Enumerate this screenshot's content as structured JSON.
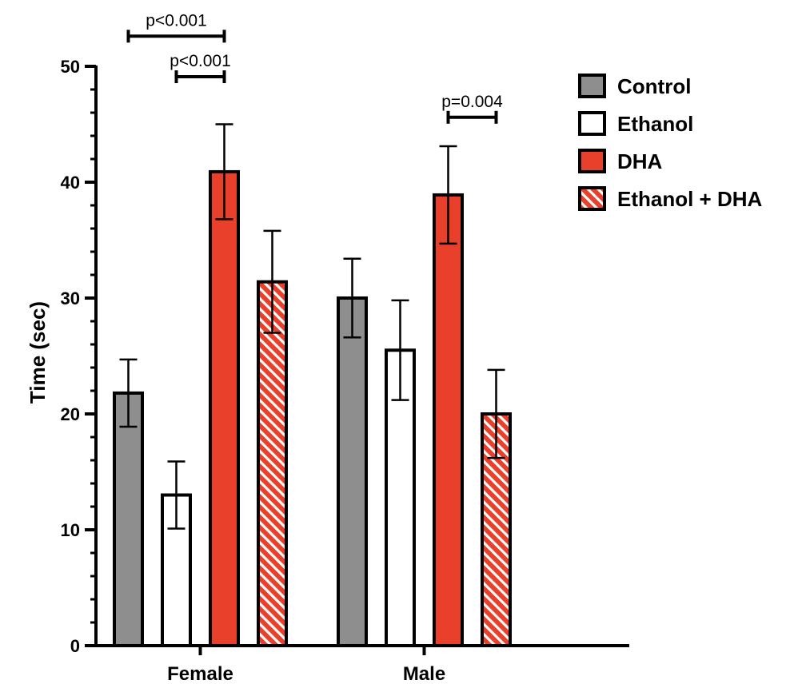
{
  "chart_data": {
    "type": "bar",
    "title": "",
    "xlabel": "",
    "ylabel": "Time (sec)",
    "ylim": [
      0,
      50
    ],
    "yticks": [
      0,
      10,
      20,
      30,
      40,
      50
    ],
    "categories": [
      "Female",
      "Male"
    ],
    "grid": false,
    "legend_position": "top-right",
    "series": [
      {
        "name": "Control",
        "color": "#8e8e8e",
        "pattern": "solid",
        "values": [
          21.8,
          30.0
        ],
        "errors": [
          2.9,
          3.4
        ]
      },
      {
        "name": "Ethanol",
        "color": "#ffffff",
        "pattern": "solid",
        "values": [
          13.0,
          25.5
        ],
        "errors": [
          2.9,
          4.3
        ]
      },
      {
        "name": "DHA",
        "color": "#e8402a",
        "pattern": "solid",
        "values": [
          40.9,
          38.9
        ],
        "errors": [
          4.1,
          4.2
        ]
      },
      {
        "name": "Ethanol + DHA",
        "color": "#e8402a",
        "pattern": "hatched",
        "values": [
          31.4,
          20.0
        ],
        "errors": [
          4.4,
          3.8
        ]
      }
    ],
    "annotations": [
      {
        "text": "p<0.001",
        "category": "Female",
        "from_series": 0,
        "to_series": 2,
        "y": 52.6
      },
      {
        "text": "p<0.001",
        "category": "Female",
        "from_series": 1,
        "to_series": 2,
        "y": 49.1
      },
      {
        "text": "p=0.004",
        "category": "Male",
        "from_series": 2,
        "to_series": 3,
        "y": 45.6
      }
    ]
  }
}
